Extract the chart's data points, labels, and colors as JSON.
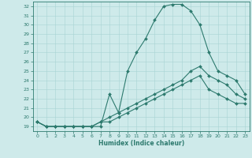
{
  "xlabel": "Humidex (Indice chaleur)",
  "bg_color": "#ceeaea",
  "line_color": "#2d7a6e",
  "grid_color": "#a8d4d4",
  "xlim": [
    -0.5,
    23.5
  ],
  "ylim": [
    18.5,
    32.5
  ],
  "xticks": [
    0,
    1,
    2,
    3,
    4,
    5,
    6,
    7,
    8,
    9,
    10,
    11,
    12,
    13,
    14,
    15,
    16,
    17,
    18,
    19,
    20,
    21,
    22,
    23
  ],
  "yticks": [
    19,
    20,
    21,
    22,
    23,
    24,
    25,
    26,
    27,
    28,
    29,
    30,
    31,
    32
  ],
  "line1_x": [
    0,
    1,
    2,
    3,
    4,
    5,
    6,
    7,
    8,
    9,
    10,
    11,
    12,
    13,
    14,
    15,
    16,
    17,
    18,
    19,
    20,
    21,
    22,
    23
  ],
  "line1_y": [
    19.5,
    19.0,
    19.0,
    19.0,
    19.0,
    19.0,
    19.0,
    19.0,
    22.5,
    20.5,
    25.0,
    27.0,
    28.5,
    30.5,
    32.0,
    32.2,
    32.2,
    31.5,
    30.0,
    27.0,
    25.0,
    24.5,
    24.0,
    22.5
  ],
  "line2_x": [
    0,
    1,
    2,
    3,
    4,
    5,
    6,
    7,
    8,
    9,
    10,
    11,
    12,
    13,
    14,
    15,
    16,
    17,
    18,
    19,
    20,
    21,
    22,
    23
  ],
  "line2_y": [
    19.5,
    19.0,
    19.0,
    19.0,
    19.0,
    19.0,
    19.0,
    19.5,
    20.0,
    20.5,
    21.0,
    21.5,
    22.0,
    22.5,
    23.0,
    23.5,
    24.0,
    25.0,
    25.5,
    24.5,
    24.0,
    23.5,
    22.5,
    22.0
  ],
  "line3_x": [
    0,
    1,
    2,
    3,
    4,
    5,
    6,
    7,
    8,
    9,
    10,
    11,
    12,
    13,
    14,
    15,
    16,
    17,
    18,
    19,
    20,
    21,
    22,
    23
  ],
  "line3_y": [
    19.5,
    19.0,
    19.0,
    19.0,
    19.0,
    19.0,
    19.0,
    19.5,
    19.5,
    20.0,
    20.5,
    21.0,
    21.5,
    22.0,
    22.5,
    23.0,
    23.5,
    24.0,
    24.5,
    23.0,
    22.5,
    22.0,
    21.5,
    21.5
  ],
  "markersize": 2.0,
  "linewidth": 0.8
}
